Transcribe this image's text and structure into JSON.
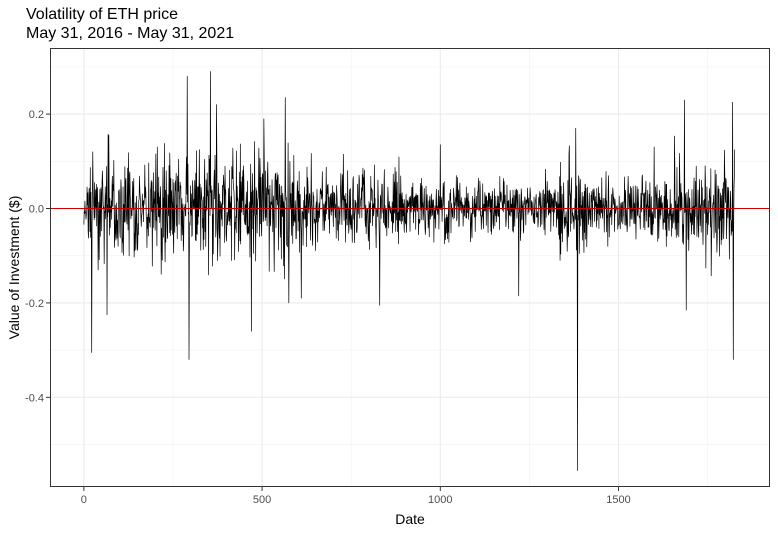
{
  "chart_data": {
    "type": "line",
    "title": "Volatility of ETH price",
    "subtitle": "May 31, 2016 - May 31, 2021",
    "xlabel": "Date",
    "ylabel": "Value of Investment ($)",
    "xlim": [
      -95,
      1925
    ],
    "ylim": [
      -0.59,
      0.34
    ],
    "x_ticks": [
      0,
      500,
      1000,
      1500
    ],
    "x_tick_labels": [
      "0",
      "500",
      "1000",
      "1500"
    ],
    "x_minor_ticks": [
      250,
      750,
      1250,
      1750
    ],
    "y_ticks": [
      -0.4,
      -0.2,
      0.0,
      0.2
    ],
    "y_tick_labels": [
      "-0.4",
      "-0.2",
      "0.0",
      "0.2"
    ],
    "y_minor_ticks": [
      -0.5,
      -0.3,
      -0.1,
      0.1,
      0.3
    ],
    "grid": true,
    "hline": {
      "y": 0.0,
      "color": "#cc0000"
    },
    "series": [
      {
        "color": "#000000",
        "n_points": 1827,
        "notable_points": [
          {
            "x": 22,
            "y": -0.305
          },
          {
            "x": 25,
            "y": 0.12
          },
          {
            "x": 40,
            "y": -0.13
          },
          {
            "x": 65,
            "y": -0.225
          },
          {
            "x": 70,
            "y": 0.155
          },
          {
            "x": 290,
            "y": 0.28
          },
          {
            "x": 295,
            "y": -0.32
          },
          {
            "x": 355,
            "y": 0.29
          },
          {
            "x": 372,
            "y": 0.22
          },
          {
            "x": 470,
            "y": -0.26
          },
          {
            "x": 505,
            "y": 0.19
          },
          {
            "x": 565,
            "y": 0.235
          },
          {
            "x": 575,
            "y": -0.2
          },
          {
            "x": 610,
            "y": -0.19
          },
          {
            "x": 830,
            "y": -0.205
          },
          {
            "x": 1000,
            "y": 0.135
          },
          {
            "x": 1220,
            "y": -0.185
          },
          {
            "x": 1380,
            "y": 0.17
          },
          {
            "x": 1385,
            "y": -0.555
          },
          {
            "x": 1470,
            "y": -0.08
          },
          {
            "x": 1600,
            "y": 0.13
          },
          {
            "x": 1685,
            "y": 0.23
          },
          {
            "x": 1690,
            "y": -0.215
          },
          {
            "x": 1820,
            "y": 0.225
          },
          {
            "x": 1822,
            "y": -0.32
          },
          {
            "x": 1826,
            "y": 0.125
          }
        ]
      }
    ]
  }
}
